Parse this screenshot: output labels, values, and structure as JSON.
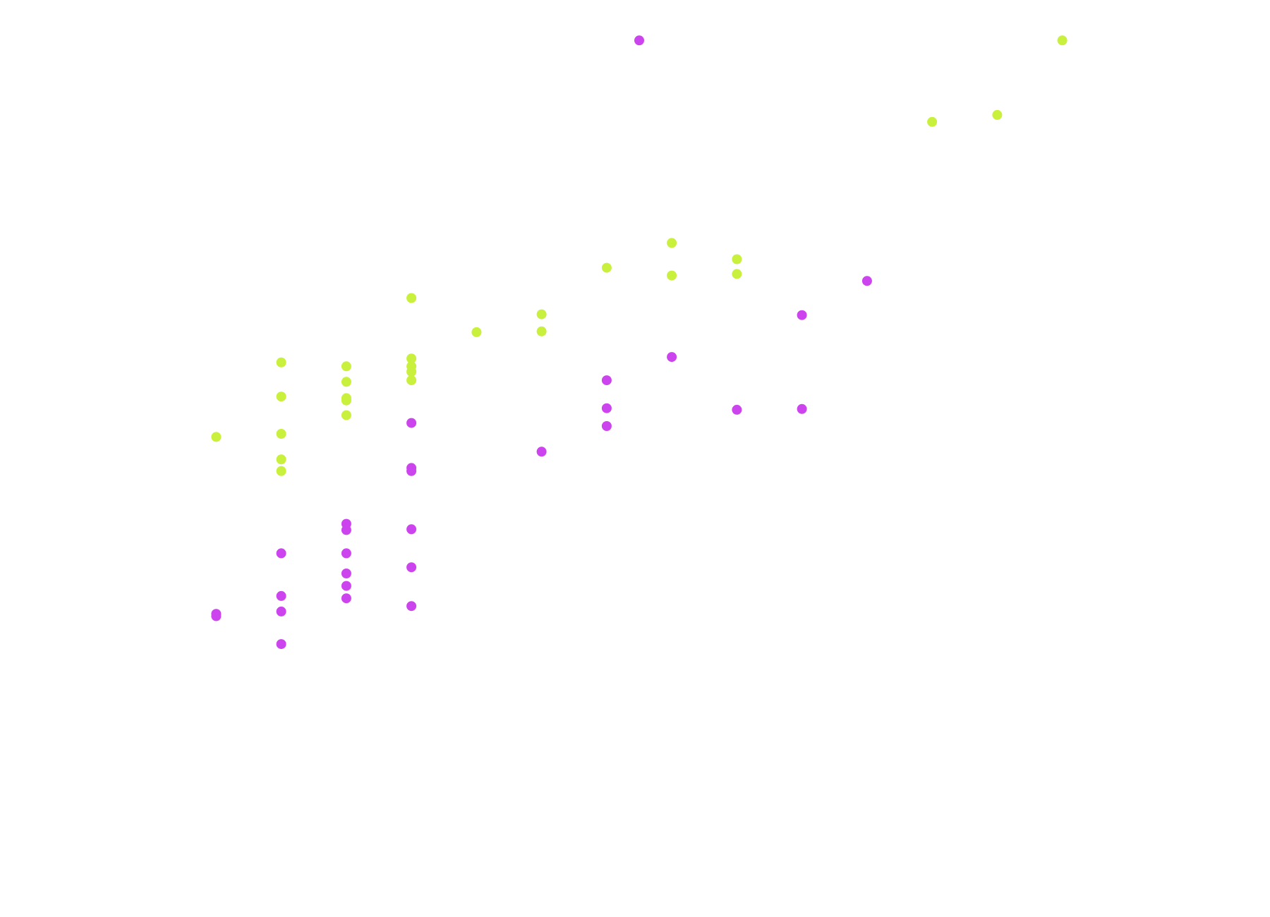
{
  "chart_data": {
    "type": "scatter",
    "colors": {
      "series_a": "#cc44ee",
      "series_b": "#c8f03c"
    },
    "xlim": [
      -1,
      15
    ],
    "ylim": [
      0,
      100
    ],
    "grid": false,
    "legend": "none",
    "series": [
      {
        "color": "#cc44ee",
        "points": [
          [
            7.0,
            95.7
          ],
          [
            10.5,
            64.7
          ],
          [
            9.5,
            60.3
          ],
          [
            7.5,
            54.9
          ],
          [
            6.5,
            51.9
          ],
          [
            6.5,
            48.3
          ],
          [
            8.5,
            48.1
          ],
          [
            9.5,
            48.2
          ],
          [
            6.5,
            46.0
          ],
          [
            3.5,
            46.4
          ],
          [
            5.5,
            42.7
          ],
          [
            3.5,
            40.6
          ],
          [
            3.5,
            40.2
          ],
          [
            2.5,
            33.4
          ],
          [
            2.5,
            32.6
          ],
          [
            3.5,
            32.7
          ],
          [
            3.5,
            27.8
          ],
          [
            1.5,
            29.6
          ],
          [
            2.5,
            29.6
          ],
          [
            2.5,
            27.0
          ],
          [
            3.5,
            22.8
          ],
          [
            2.5,
            25.4
          ],
          [
            2.5,
            23.8
          ],
          [
            1.5,
            24.1
          ],
          [
            1.5,
            22.1
          ],
          [
            0.5,
            21.8
          ],
          [
            0.5,
            21.5
          ],
          [
            1.5,
            17.9
          ]
        ]
      },
      {
        "color": "#c8f03c",
        "points": [
          [
            13.5,
            95.7
          ],
          [
            12.5,
            86.1
          ],
          [
            11.5,
            85.2
          ],
          [
            7.5,
            69.6
          ],
          [
            6.5,
            66.4
          ],
          [
            8.5,
            67.5
          ],
          [
            7.5,
            65.4
          ],
          [
            8.5,
            65.6
          ],
          [
            3.5,
            62.5
          ],
          [
            5.5,
            60.4
          ],
          [
            5.5,
            58.2
          ],
          [
            4.5,
            58.1
          ],
          [
            3.5,
            54.7
          ],
          [
            1.5,
            54.2
          ],
          [
            2.5,
            53.7
          ],
          [
            3.5,
            53.0
          ],
          [
            3.5,
            53.7
          ],
          [
            3.5,
            51.9
          ],
          [
            2.5,
            51.7
          ],
          [
            2.5,
            49.6
          ],
          [
            2.5,
            49.3
          ],
          [
            1.5,
            49.8
          ],
          [
            2.5,
            47.4
          ],
          [
            1.5,
            45.0
          ],
          [
            0.5,
            44.6
          ],
          [
            1.5,
            41.7
          ],
          [
            1.5,
            40.2
          ]
        ]
      }
    ]
  }
}
